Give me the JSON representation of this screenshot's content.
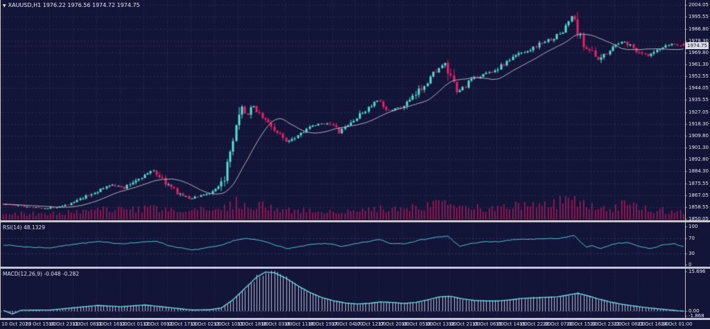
{
  "window": {
    "symbol": "XAUUSD,H1",
    "ohlc_text": "1976.22 1976.56 1974.72 1974.75",
    "dropdown_icon": "▼"
  },
  "panels": {
    "rsi": {
      "label": "RSI(14) 48.1329"
    },
    "macd": {
      "label": "MACD(12,26,9) -0.048 -0.282"
    }
  },
  "chart_data": {
    "type": "candlestick",
    "symbol": "XAUUSD",
    "timeframe": "H1",
    "bars_total": 232,
    "current_bar": {
      "open": 1976.22,
      "high": 1976.56,
      "low": 1974.72,
      "close": 1974.75
    },
    "price_axis": {
      "ticks": [
        "2004.05",
        "1995.55",
        "1986.80",
        "1978.30",
        "1969.80",
        "1961.30",
        "1952.55",
        "1944.05",
        "1935.55",
        "1927.05",
        "1918.30",
        "1909.80",
        "1901.30",
        "1892.80",
        "1884.30",
        "1875.55",
        "1867.05",
        "1858.55",
        "1850.05"
      ],
      "range": [
        1850.05,
        2004.05
      ],
      "current_tag": "1974.75"
    },
    "time_axis": {
      "labels": [
        "10 Oct 2023",
        "10 Oct 15:00",
        "10 Oct 23:00",
        "11 Oct 08:00",
        "11 Oct 16:00",
        "12 Oct 01:00",
        "12 Oct 09:00",
        "12 Oct 17:00",
        "13 Oct 02:00",
        "13 Oct 10:00",
        "13 Oct 18:00",
        "16 Oct 03:00",
        "16 Oct 11:00",
        "16 Oct 19:00",
        "17 Oct 04:00",
        "17 Oct 12:00",
        "17 Oct 20:00",
        "18 Oct 05:00",
        "18 Oct 13:00",
        "18 Oct 21:00",
        "19 Oct 06:00",
        "19 Oct 14:00",
        "19 Oct 22:00",
        "20 Oct 07:00",
        "20 Oct 15:00",
        "20 Oct 23:00",
        "23 Oct 08:00",
        "23 Oct 16:00",
        "24 Oct 01:00"
      ],
      "bars_per_label": 8
    },
    "price_anchors": [
      [
        0,
        1861
      ],
      [
        8,
        1859
      ],
      [
        16,
        1857.5
      ],
      [
        24,
        1861
      ],
      [
        32,
        1869
      ],
      [
        38,
        1875
      ],
      [
        42,
        1872
      ],
      [
        46,
        1878
      ],
      [
        52,
        1885
      ],
      [
        56,
        1876
      ],
      [
        60,
        1869
      ],
      [
        64,
        1864.5
      ],
      [
        68,
        1867
      ],
      [
        72,
        1869
      ],
      [
        75,
        1874
      ],
      [
        78,
        1895
      ],
      [
        80,
        1915
      ],
      [
        82,
        1929
      ],
      [
        84,
        1925
      ],
      [
        86,
        1931
      ],
      [
        90,
        1921
      ],
      [
        94,
        1912
      ],
      [
        97,
        1906
      ],
      [
        100,
        1909
      ],
      [
        104,
        1915
      ],
      [
        108,
        1918
      ],
      [
        112,
        1919
      ],
      [
        115,
        1912
      ],
      [
        120,
        1921
      ],
      [
        125,
        1930
      ],
      [
        128,
        1935
      ],
      [
        131,
        1928
      ],
      [
        136,
        1930
      ],
      [
        140,
        1937
      ],
      [
        144,
        1947
      ],
      [
        148,
        1957
      ],
      [
        151,
        1961
      ],
      [
        153,
        1950
      ],
      [
        155,
        1941
      ],
      [
        158,
        1946
      ],
      [
        160,
        1950
      ],
      [
        164,
        1954
      ],
      [
        168,
        1957
      ],
      [
        172,
        1963
      ],
      [
        176,
        1969
      ],
      [
        180,
        1972
      ],
      [
        184,
        1977
      ],
      [
        188,
        1980
      ],
      [
        191,
        1985
      ],
      [
        193,
        1992
      ],
      [
        194,
        1996
      ],
      [
        196,
        1986
      ],
      [
        198,
        1974
      ],
      [
        200,
        1972
      ],
      [
        203,
        1964
      ],
      [
        206,
        1970
      ],
      [
        208,
        1974
      ],
      [
        212,
        1978
      ],
      [
        216,
        1971
      ],
      [
        220,
        1967
      ],
      [
        224,
        1972
      ],
      [
        228,
        1976
      ],
      [
        231,
        1974.75
      ]
    ],
    "volume_anchors": [
      [
        0,
        0.3
      ],
      [
        16,
        0.25
      ],
      [
        32,
        0.4
      ],
      [
        52,
        0.45
      ],
      [
        64,
        0.35
      ],
      [
        74,
        0.5
      ],
      [
        80,
        0.75
      ],
      [
        86,
        0.6
      ],
      [
        96,
        0.45
      ],
      [
        104,
        0.35
      ],
      [
        112,
        0.3
      ],
      [
        120,
        0.35
      ],
      [
        128,
        0.45
      ],
      [
        136,
        0.4
      ],
      [
        144,
        0.7
      ],
      [
        148,
        0.85
      ],
      [
        152,
        0.6
      ],
      [
        160,
        0.5
      ],
      [
        168,
        0.45
      ],
      [
        172,
        0.6
      ],
      [
        176,
        0.55
      ],
      [
        184,
        0.6
      ],
      [
        190,
        0.8
      ],
      [
        194,
        0.95
      ],
      [
        200,
        0.6
      ],
      [
        208,
        0.5
      ],
      [
        212,
        0.7
      ],
      [
        216,
        0.5
      ],
      [
        224,
        0.4
      ],
      [
        231,
        0.35
      ]
    ],
    "indicators": {
      "ma": {
        "period": 16
      },
      "rsi": {
        "name": "RSI(14)",
        "value": 48.1329,
        "ticks": [
          "100",
          "70",
          "30",
          "0"
        ],
        "levels": [
          70,
          30
        ],
        "range": [
          0,
          100
        ],
        "anchors": [
          [
            0,
            52
          ],
          [
            8,
            46
          ],
          [
            16,
            44
          ],
          [
            24,
            54
          ],
          [
            32,
            60
          ],
          [
            40,
            55
          ],
          [
            46,
            58
          ],
          [
            52,
            62
          ],
          [
            56,
            50
          ],
          [
            60,
            44
          ],
          [
            64,
            38
          ],
          [
            70,
            45
          ],
          [
            74,
            50
          ],
          [
            78,
            63
          ],
          [
            82,
            68
          ],
          [
            86,
            65
          ],
          [
            90,
            58
          ],
          [
            96,
            42
          ],
          [
            100,
            46
          ],
          [
            104,
            52
          ],
          [
            108,
            55
          ],
          [
            112,
            54
          ],
          [
            115,
            47
          ],
          [
            120,
            55
          ],
          [
            125,
            62
          ],
          [
            128,
            66
          ],
          [
            131,
            56
          ],
          [
            136,
            55
          ],
          [
            140,
            62
          ],
          [
            144,
            68
          ],
          [
            148,
            73
          ],
          [
            151,
            74
          ],
          [
            153,
            60
          ],
          [
            155,
            48
          ],
          [
            158,
            54
          ],
          [
            160,
            57
          ],
          [
            164,
            60
          ],
          [
            168,
            60
          ],
          [
            172,
            64
          ],
          [
            176,
            67
          ],
          [
            180,
            66
          ],
          [
            184,
            68
          ],
          [
            188,
            68
          ],
          [
            191,
            72
          ],
          [
            194,
            76
          ],
          [
            196,
            60
          ],
          [
            198,
            45
          ],
          [
            200,
            50
          ],
          [
            203,
            42
          ],
          [
            208,
            55
          ],
          [
            212,
            58
          ],
          [
            216,
            47
          ],
          [
            220,
            42
          ],
          [
            224,
            52
          ],
          [
            228,
            54
          ],
          [
            231,
            48.13
          ]
        ]
      },
      "macd": {
        "name": "MACD(12,26,9)",
        "values": [
          -0.048,
          -0.282
        ],
        "ticks": [
          "15.696",
          "0.00",
          "-1.868"
        ],
        "range": [
          -1.868,
          15.696
        ],
        "anchors": [
          [
            0,
            0.2
          ],
          [
            3,
            -1.2
          ],
          [
            6,
            0.3
          ],
          [
            16,
            0.4
          ],
          [
            24,
            1.3
          ],
          [
            32,
            2.2
          ],
          [
            40,
            1.7
          ],
          [
            48,
            2.4
          ],
          [
            56,
            1.4
          ],
          [
            64,
            0.4
          ],
          [
            70,
            0.5
          ],
          [
            74,
            1.2
          ],
          [
            78,
            4.5
          ],
          [
            82,
            9
          ],
          [
            86,
            13.5
          ],
          [
            89,
            15.5
          ],
          [
            92,
            15.2
          ],
          [
            96,
            13
          ],
          [
            100,
            10
          ],
          [
            104,
            7.4
          ],
          [
            108,
            5.4
          ],
          [
            112,
            4.1
          ],
          [
            116,
            3.2
          ],
          [
            120,
            2.8
          ],
          [
            124,
            3.0
          ],
          [
            128,
            3.6
          ],
          [
            132,
            3.4
          ],
          [
            136,
            3.0
          ],
          [
            140,
            3.4
          ],
          [
            144,
            4.4
          ],
          [
            148,
            5.6
          ],
          [
            152,
            5.8
          ],
          [
            156,
            4.8
          ],
          [
            160,
            4.2
          ],
          [
            164,
            4.0
          ],
          [
            168,
            4.0
          ],
          [
            172,
            4.4
          ],
          [
            176,
            5.0
          ],
          [
            180,
            5.2
          ],
          [
            184,
            5.4
          ],
          [
            188,
            5.6
          ],
          [
            192,
            6.4
          ],
          [
            195,
            7.0
          ],
          [
            198,
            6.2
          ],
          [
            202,
            4.8
          ],
          [
            206,
            3.6
          ],
          [
            210,
            2.7
          ],
          [
            214,
            2.0
          ],
          [
            218,
            1.4
          ],
          [
            222,
            0.9
          ],
          [
            226,
            0.45
          ],
          [
            229,
            0.1
          ],
          [
            231,
            -0.05
          ]
        ]
      }
    },
    "colors": {
      "background": "#131538",
      "grid": "#2a2e5c",
      "bull": "#57e3d4",
      "bear": "#f02168",
      "volume": "#a81757",
      "ma_line": "#b4b4c2",
      "rsi_line": "#4fc8d8",
      "macd_line": "#6fdbe4",
      "macd_hist": "#b7bcd6",
      "separator": "#c6c6cf",
      "axis_text": "#e8e9f1",
      "tag_bg": "#dcdce4"
    }
  }
}
